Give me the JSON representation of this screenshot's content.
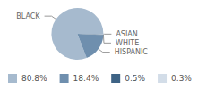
{
  "chart_data": {
    "type": "pie",
    "categories": [
      "BLACK",
      "HISPANIC",
      "WHITE",
      "ASIAN"
    ],
    "values": [
      80.8,
      18.4,
      0.5,
      0.3
    ],
    "value_labels": [
      "80.8%",
      "18.4%",
      "0.5%",
      "0.3%"
    ],
    "colors": [
      "#a6bace",
      "#6f8fae",
      "#3e6385",
      "#d3dde8"
    ],
    "legend": "bottom"
  }
}
